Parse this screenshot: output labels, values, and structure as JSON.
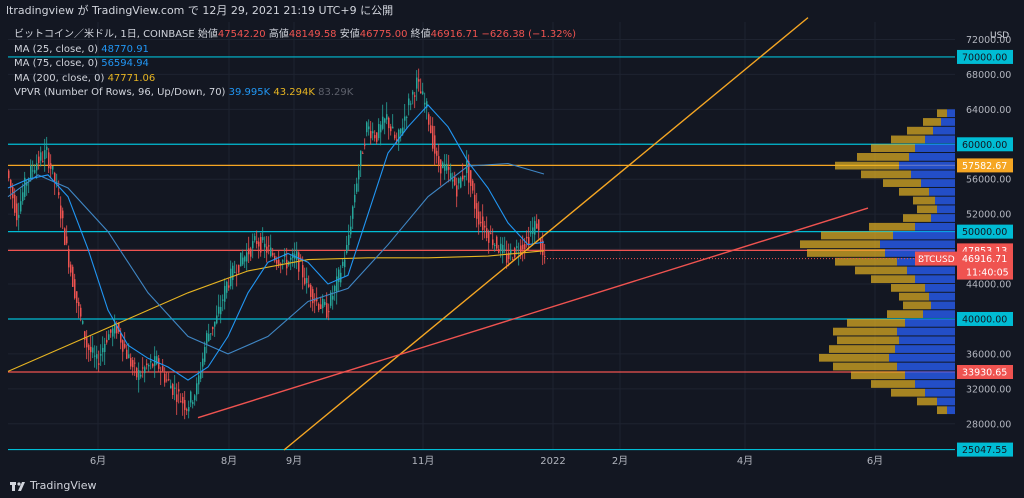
{
  "header": {
    "publish_text": "ltradingview が TradingView.com で 12月 29, 2021 21:19 UTC+9 に公開"
  },
  "legend": {
    "symbol": "ビットコイン／米ドル, 1日, COINBASE",
    "open_label": "始値",
    "open_value": "47542.20",
    "high_label": "高値",
    "high_value": "48149.58",
    "low_label": "安値",
    "low_value": "46775.00",
    "close_label": "終値",
    "close_value": "46916.71",
    "change_value": "−626.38 (−1.32%)",
    "ma25_label": "MA (25, close, 0)",
    "ma25_value": "48770.91",
    "ma75_label": "MA (75, close, 0)",
    "ma75_value": "56594.94",
    "ma200_label": "MA (200, close, 0)",
    "ma200_value": "47771.06",
    "vpvr_label": "VPVR (Number Of Rows, 96, Up/Down, 70)",
    "vpvr_up": "39.995K",
    "vpvr_down": "43.294K",
    "vpvr_total": "83.29K"
  },
  "footer": {
    "brand": "TradingView",
    "logo_icon": "tradingview-logo-icon"
  },
  "colors": {
    "background": "#131722",
    "up": "#26a69a",
    "down": "#ef5350",
    "ma25": "#2196f3",
    "ma75": "#4f9fd0",
    "ma200": "#e6b422",
    "cyan": "#00bcd4",
    "orange": "#f5a623",
    "red": "#ef5350"
  },
  "chart_data": {
    "type": "candlestick",
    "currency_label": "USD",
    "y_ticks": [
      72000,
      68000,
      64000,
      60000,
      56000,
      52000,
      48000,
      44000,
      40000,
      36000,
      32000,
      28000
    ],
    "x_tick_labels": [
      "6月",
      "8月",
      "9月",
      "11月",
      "2022",
      "2月",
      "4月",
      "6月"
    ],
    "ylim": [
      25000,
      74000
    ],
    "price_path": [
      [
        0,
        57000
      ],
      [
        5,
        52000
      ],
      [
        10,
        56000
      ],
      [
        15,
        58000
      ],
      [
        20,
        59000
      ],
      [
        25,
        55000
      ],
      [
        30,
        48000
      ],
      [
        35,
        42000
      ],
      [
        40,
        37000
      ],
      [
        45,
        35000
      ],
      [
        50,
        38000
      ],
      [
        55,
        39000
      ],
      [
        60,
        36000
      ],
      [
        65,
        33500
      ],
      [
        70,
        34500
      ],
      [
        75,
        35000
      ],
      [
        80,
        33000
      ],
      [
        85,
        31500
      ],
      [
        90,
        30000
      ],
      [
        95,
        32000
      ],
      [
        100,
        38000
      ],
      [
        105,
        40000
      ],
      [
        110,
        44000
      ],
      [
        115,
        46000
      ],
      [
        120,
        47500
      ],
      [
        125,
        49000
      ],
      [
        130,
        48000
      ],
      [
        135,
        47000
      ],
      [
        140,
        46500
      ],
      [
        145,
        47000
      ],
      [
        150,
        44000
      ],
      [
        155,
        42000
      ],
      [
        160,
        41000
      ],
      [
        165,
        44000
      ],
      [
        170,
        48000
      ],
      [
        175,
        56000
      ],
      [
        180,
        62000
      ],
      [
        185,
        61000
      ],
      [
        190,
        63000
      ],
      [
        195,
        60000
      ],
      [
        200,
        64000
      ],
      [
        205,
        67000
      ],
      [
        210,
        64000
      ],
      [
        215,
        58000
      ],
      [
        220,
        57000
      ],
      [
        225,
        55000
      ],
      [
        230,
        57500
      ],
      [
        235,
        52000
      ],
      [
        240,
        50000
      ],
      [
        245,
        48500
      ],
      [
        250,
        47000
      ],
      [
        255,
        48000
      ],
      [
        260,
        49000
      ],
      [
        265,
        51000
      ],
      [
        268,
        47000
      ]
    ],
    "ma25_path": [
      [
        0,
        55000
      ],
      [
        10,
        56000
      ],
      [
        20,
        56500
      ],
      [
        30,
        54000
      ],
      [
        40,
        48000
      ],
      [
        50,
        41000
      ],
      [
        60,
        37000
      ],
      [
        70,
        35500
      ],
      [
        80,
        34500
      ],
      [
        90,
        33000
      ],
      [
        100,
        34500
      ],
      [
        110,
        38000
      ],
      [
        120,
        43000
      ],
      [
        130,
        46500
      ],
      [
        140,
        47500
      ],
      [
        150,
        46500
      ],
      [
        160,
        44000
      ],
      [
        170,
        45000
      ],
      [
        180,
        52000
      ],
      [
        190,
        59000
      ],
      [
        200,
        62000
      ],
      [
        210,
        64500
      ],
      [
        220,
        62000
      ],
      [
        230,
        58000
      ],
      [
        240,
        55000
      ],
      [
        250,
        51000
      ],
      [
        260,
        48500
      ],
      [
        268,
        48800
      ]
    ],
    "ma75_path": [
      [
        0,
        54000
      ],
      [
        15,
        56500
      ],
      [
        30,
        55000
      ],
      [
        50,
        50000
      ],
      [
        70,
        43000
      ],
      [
        90,
        38000
      ],
      [
        110,
        36000
      ],
      [
        130,
        38000
      ],
      [
        150,
        42000
      ],
      [
        170,
        43500
      ],
      [
        190,
        48500
      ],
      [
        210,
        54000
      ],
      [
        230,
        57500
      ],
      [
        250,
        57800
      ],
      [
        268,
        56600
      ]
    ],
    "ma200_path": [
      [
        0,
        34000
      ],
      [
        30,
        37000
      ],
      [
        60,
        40000
      ],
      [
        90,
        43000
      ],
      [
        120,
        45500
      ],
      [
        150,
        46800
      ],
      [
        180,
        47000
      ],
      [
        210,
        47000
      ],
      [
        240,
        47200
      ],
      [
        268,
        47800
      ]
    ],
    "horizontal_levels": [
      {
        "price": 70000,
        "label": "70000.00",
        "color": "#00bcd4"
      },
      {
        "price": 60000,
        "label": "60000.00",
        "color": "#00bcd4"
      },
      {
        "price": 57582.67,
        "label": "57582.67",
        "color": "#f5a623"
      },
      {
        "price": 50000,
        "label": "50000.00",
        "color": "#00bcd4"
      },
      {
        "price": 47853.13,
        "label": "47853.13",
        "color": "#ef5350"
      },
      {
        "price": 40000,
        "label": "40000.00",
        "color": "#00bcd4"
      },
      {
        "price": 33930.65,
        "label": "33930.65",
        "color": "#ef5350"
      },
      {
        "price": 25047.55,
        "label": "25047.55",
        "color": "#00bcd4"
      }
    ],
    "current_price": {
      "symbol": "BTCUSD",
      "price": "46916.71",
      "countdown": "11:40:05"
    },
    "trendlines": [
      {
        "color": "#f5a623",
        "from": [
          138,
          25000
        ],
        "to": [
          400,
          74500
        ]
      },
      {
        "color": "#ef5350",
        "from": [
          95,
          28700
        ],
        "to": [
          430,
          52700
        ]
      }
    ],
    "volume_profile": [
      {
        "price": 63500,
        "up": 8,
        "down": 10
      },
      {
        "price": 62500,
        "up": 14,
        "down": 18
      },
      {
        "price": 61500,
        "up": 22,
        "down": 26
      },
      {
        "price": 60500,
        "up": 30,
        "down": 34
      },
      {
        "price": 59500,
        "up": 40,
        "down": 44
      },
      {
        "price": 58500,
        "up": 46,
        "down": 52
      },
      {
        "price": 57500,
        "up": 56,
        "down": 64
      },
      {
        "price": 56500,
        "up": 44,
        "down": 50
      },
      {
        "price": 55500,
        "up": 34,
        "down": 38
      },
      {
        "price": 54500,
        "up": 26,
        "down": 30
      },
      {
        "price": 53500,
        "up": 20,
        "down": 22
      },
      {
        "price": 52500,
        "up": 18,
        "down": 20
      },
      {
        "price": 51500,
        "up": 24,
        "down": 28
      },
      {
        "price": 50500,
        "up": 40,
        "down": 46
      },
      {
        "price": 49500,
        "up": 62,
        "down": 72
      },
      {
        "price": 48500,
        "up": 75,
        "down": 80
      },
      {
        "price": 47500,
        "up": 70,
        "down": 78
      },
      {
        "price": 46500,
        "up": 58,
        "down": 62
      },
      {
        "price": 45500,
        "up": 48,
        "down": 52
      },
      {
        "price": 44500,
        "up": 40,
        "down": 44
      },
      {
        "price": 43500,
        "up": 30,
        "down": 34
      },
      {
        "price": 42500,
        "up": 26,
        "down": 30
      },
      {
        "price": 41500,
        "up": 24,
        "down": 28
      },
      {
        "price": 40500,
        "up": 32,
        "down": 36
      },
      {
        "price": 39500,
        "up": 50,
        "down": 58
      },
      {
        "price": 38500,
        "up": 58,
        "down": 64
      },
      {
        "price": 37500,
        "up": 56,
        "down": 62
      },
      {
        "price": 36500,
        "up": 60,
        "down": 66
      },
      {
        "price": 35500,
        "up": 66,
        "down": 70
      },
      {
        "price": 34500,
        "up": 58,
        "down": 64
      },
      {
        "price": 33500,
        "up": 50,
        "down": 54
      },
      {
        "price": 32500,
        "up": 40,
        "down": 44
      },
      {
        "price": 31500,
        "up": 30,
        "down": 34
      },
      {
        "price": 30500,
        "up": 18,
        "down": 20
      },
      {
        "price": 29500,
        "up": 8,
        "down": 10
      }
    ]
  }
}
